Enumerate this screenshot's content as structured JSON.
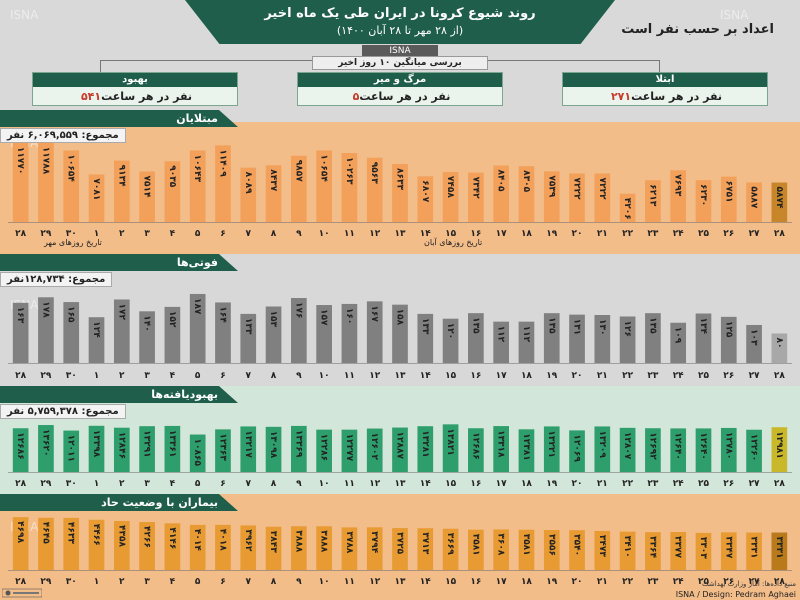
{
  "header": {
    "title": "روند شیوع کرونا در ایران طی یک ماه اخیر",
    "subtitle": "(از ۲۸ مهر تا ۲۸ آبان ۱۴۰۰)",
    "source": "ISNA",
    "units_note": "اعداد بر حسب نفر است",
    "review_label": "بررسی میانگین ۱۰ روز اخیر",
    "watermark": "ISNA"
  },
  "summary_boxes": [
    {
      "title": "بهبود",
      "value": "۵۴۱",
      "suffix": "نفر در هر ساعت"
    },
    {
      "title": "مرگ و میر",
      "value": "۵",
      "suffix": "نفر در هر ساعت"
    },
    {
      "title": "ابتلا",
      "value": "۲۷۱",
      "suffix": "نفر در هر ساعت"
    }
  ],
  "sections": {
    "infected": {
      "title": "مبتلایان",
      "total": "مجموع: ۶,۰۶۹,۵۵۹ نفر",
      "axis_right": "تاریخ روزهای مهر",
      "axis_left": "تاریخ روزهای آبان"
    },
    "deaths": {
      "title": "فوتی‌ها",
      "total": "مجموع: ۱۲۸,۷۳۴نفر"
    },
    "recovered": {
      "title": "بهبودیافته‌ها",
      "total": "مجموع: ۵,۷۵۹,۳۷۸ نفر"
    },
    "critical": {
      "title": "بیماران با وضعیت حاد"
    }
  },
  "credits": {
    "design": "ISNA / Design: Pedram Aghaei",
    "footnote": "منبع داده‌ها: آمار وزارت بهداشت"
  },
  "colors": {
    "brand": "#1f5e4a",
    "infected_bar": "#f2a05a",
    "infected_last": "#c8862a",
    "death_bar": "#808080",
    "death_last": "#a8a8a8",
    "recovered_bar": "#2e9e6d",
    "recovered_last": "#c8b82a",
    "critical_bar": "#e89a33",
    "critical_last": "#b87a1a"
  },
  "chart_data": [
    {
      "type": "bar",
      "title": "مبتلایان",
      "categories": [
        "۲۸",
        "۲۹",
        "۳۰",
        "۱",
        "۲",
        "۳",
        "۴",
        "۵",
        "۶",
        "۷",
        "۸",
        "۹",
        "۱۰",
        "۱۱",
        "۱۲",
        "۱۳",
        "۱۴",
        "۱۵",
        "۱۶",
        "۱۷",
        "۱۸",
        "۱۹",
        "۲۰",
        "۲۱",
        "۲۲",
        "۲۳",
        "۲۴",
        "۲۵",
        "۲۶",
        "۲۷",
        "۲۸"
      ],
      "values": [
        11770,
        11788,
        10654,
        7081,
        9134,
        7514,
        9035,
        10643,
        11409,
        8089,
        8437,
        9857,
        10654,
        10263,
        9563,
        8633,
        6807,
        7458,
        7342,
        8405,
        8305,
        7539,
        7222,
        7222,
        4206,
        6213,
        7693,
        6230,
        6751,
        5887,
        5874
      ],
      "labels": [
        "۱۱۷۷۰",
        "۱۱۷۸۸",
        "۱۰۶۵۴",
        "۷۰۸۱",
        "۹۱۳۴",
        "۷۵۱۴",
        "۹۰۳۵",
        "۱۰۶۴۳",
        "۱۱۴۰۹",
        "۸۰۸۹",
        "۸۴۳۷",
        "۹۸۵۷",
        "۱۰۶۵۴",
        "۱۰۲۶۳",
        "۹۵۶۳",
        "۸۶۳۳",
        "۶۸۰۷",
        "۷۴۵۸",
        "۷۳۴۲",
        "۸۴۰۵",
        "۸۳۰۵",
        "۷۵۳۹",
        "۷۲۲۲",
        "۷۲۲۲",
        "۴۲۰۶",
        "۶۲۱۳",
        "۷۶۹۳",
        "۶۲۳۰",
        "۶۷۵۱",
        "۵۸۸۷",
        "۵۸۷۴"
      ],
      "ylim": [
        0,
        12500
      ]
    },
    {
      "type": "bar",
      "title": "فوتی‌ها",
      "categories": [
        "۲۸",
        "۲۹",
        "۳۰",
        "۱",
        "۲",
        "۳",
        "۴",
        "۵",
        "۶",
        "۷",
        "۸",
        "۹",
        "۱۰",
        "۱۱",
        "۱۲",
        "۱۳",
        "۱۴",
        "۱۵",
        "۱۶",
        "۱۷",
        "۱۸",
        "۱۹",
        "۲۰",
        "۲۱",
        "۲۲",
        "۲۳",
        "۲۴",
        "۲۵",
        "۲۶",
        "۲۷",
        "۲۸"
      ],
      "values": [
        163,
        178,
        165,
        124,
        172,
        140,
        152,
        187,
        164,
        133,
        153,
        176,
        157,
        160,
        167,
        158,
        133,
        120,
        135,
        112,
        112,
        135,
        131,
        130,
        126,
        135,
        109,
        134,
        125,
        103,
        80
      ],
      "labels": [
        "۱۶۳",
        "۱۷۸",
        "۱۶۵",
        "۱۲۴",
        "۱۷۲",
        "۱۴۰",
        "۱۵۲",
        "۱۸۷",
        "۱۶۴",
        "۱۳۳",
        "۱۵۳",
        "۱۷۶",
        "۱۵۷",
        "۱۶۰",
        "۱۶۷",
        "۱۵۸",
        "۱۳۳",
        "۱۲۰",
        "۱۳۵",
        "۱۱۲",
        "۱۱۲",
        "۱۳۵",
        "۱۳۱",
        "۱۳۰",
        "۱۲۶",
        "۱۳۵",
        "۱۰۹",
        "۱۳۴",
        "۱۲۵",
        "۱۰۳",
        "۸۰"
      ],
      "ylim": [
        0,
        195
      ]
    },
    {
      "type": "bar",
      "title": "بهبودیافته‌ها",
      "categories": [
        "۲۸",
        "۲۹",
        "۳۰",
        "۱",
        "۲",
        "۳",
        "۴",
        "۵",
        "۶",
        "۷",
        "۸",
        "۹",
        "۱۰",
        "۱۱",
        "۱۲",
        "۱۳",
        "۱۴",
        "۱۵",
        "۱۶",
        "۱۷",
        "۱۸",
        "۱۹",
        "۲۰",
        "۲۱",
        "۲۲",
        "۲۳",
        "۲۴",
        "۲۵",
        "۲۶",
        "۲۷",
        "۲۸"
      ],
      "values": [
        12686,
        13620,
        12011,
        13398,
        12846,
        13291,
        13361,
        10865,
        12363,
        13217,
        13098,
        13369,
        12286,
        12277,
        12602,
        12887,
        13281,
        13821,
        12686,
        13318,
        12381,
        13221,
        12069,
        13209,
        12807,
        12692,
        12640,
        12640,
        12780,
        12260,
        12981
      ],
      "labels": [
        "۱۲۶۸۶",
        "۱۳۶۲۰",
        "۱۲۰۱۱",
        "۱۳۳۹۸",
        "۱۲۸۴۶",
        "۱۳۲۹۱",
        "۱۳۳۶۱",
        "۱۰۸۶۵",
        "۱۲۳۶۳",
        "۱۳۲۱۷",
        "۱۳۰۹۸",
        "۱۳۳۶۹",
        "۱۲۲۸۶",
        "۱۲۲۷۷",
        "۱۲۶۰۲",
        "۱۲۸۸۷",
        "۱۳۲۸۱",
        "۱۳۸۲۱",
        "۱۲۶۸۶",
        "۱۳۳۱۸",
        "۱۲۳۸۱",
        "۱۳۲۲۱",
        "۱۲۰۶۹",
        "۱۳۲۰۹",
        "۱۲۸۰۷",
        "۱۲۶۹۲",
        "۱۲۶۴۰",
        "۱۲۶۴۰",
        "۱۲۷۸۰",
        "۱۲۲۶۰",
        "۱۲۹۸۱"
      ],
      "ylim": [
        0,
        14500
      ]
    },
    {
      "type": "bar",
      "title": "بیماران با وضعیت حاد",
      "categories": [
        "۲۸",
        "۲۹",
        "۳۰",
        "۱",
        "۲",
        "۳",
        "۴",
        "۵",
        "۶",
        "۷",
        "۸",
        "۹",
        "۱۰",
        "۱۱",
        "۱۲",
        "۱۳",
        "۱۴",
        "۱۵",
        "۱۶",
        "۱۷",
        "۱۸",
        "۱۹",
        "۲۰",
        "۲۱",
        "۲۲",
        "۲۳",
        "۲۴",
        "۲۵",
        "۲۶",
        "۲۷",
        "۲۸"
      ],
      "values": [
        4698,
        4645,
        4633,
        4466,
        4358,
        4266,
        4146,
        4014,
        4018,
        3962,
        3843,
        3888,
        3888,
        3788,
        3794,
        3725,
        3713,
        3669,
        3581,
        3608,
        3581,
        3556,
        3540,
        3473,
        3410,
        3364,
        3377,
        3303,
        3347,
        3331,
        3331
      ],
      "labels": [
        "۴۶۹۸",
        "۴۶۴۵",
        "۴۶۳۳",
        "۴۴۶۶",
        "۴۳۵۸",
        "۴۲۶۶",
        "۴۱۴۶",
        "۴۰۱۴",
        "۴۰۱۸",
        "۳۹۶۲",
        "۳۸۴۳",
        "۳۸۸۸",
        "۳۸۸۸",
        "۳۷۸۸",
        "۳۷۹۴",
        "۳۷۲۵",
        "۳۷۱۳",
        "۳۶۶۹",
        "۳۵۸۱",
        "۳۶۰۸",
        "۳۵۸۱",
        "۳۵۵۶",
        "۳۵۴۰",
        "۳۴۷۳",
        "۳۴۱۰",
        "۳۳۶۴",
        "۳۳۷۷",
        "۳۳۰۳",
        "۳۳۴۷",
        "۳۳۳۱",
        "۳۳۳۱"
      ],
      "ylim": [
        0,
        4800
      ]
    }
  ]
}
